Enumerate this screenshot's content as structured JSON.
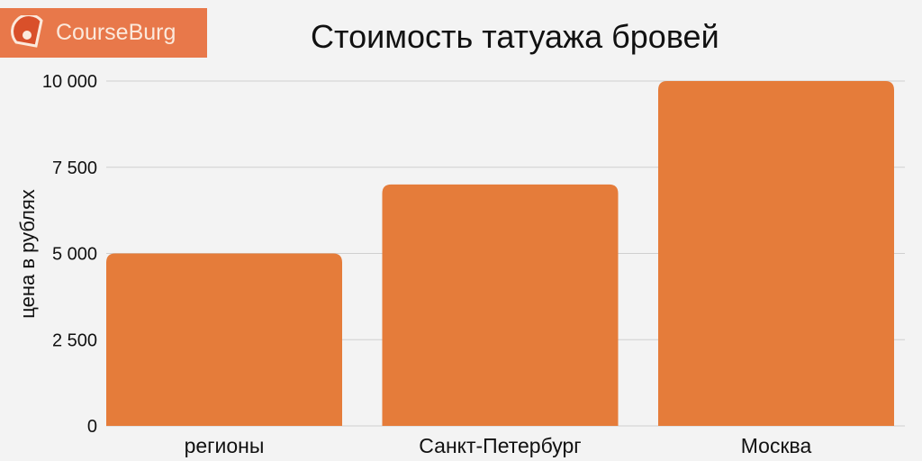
{
  "logo": {
    "text": "CourseBurg",
    "color": "#e8784a"
  },
  "chart_data": {
    "type": "bar",
    "title": "Стоимость татуажа бровей",
    "xlabel": "",
    "ylabel": "цена в рублях",
    "categories": [
      "регионы",
      "Санкт-Петербург",
      "Москва"
    ],
    "values": [
      5000,
      7000,
      10000
    ],
    "ylim": [
      0,
      10000
    ],
    "yticks": [
      0,
      2500,
      5000,
      7500,
      10000
    ],
    "ytick_labels": [
      "0",
      "2 500",
      "5 000",
      "7 500",
      "10 000"
    ],
    "grid": true,
    "bar_color": "#e57c3a"
  }
}
